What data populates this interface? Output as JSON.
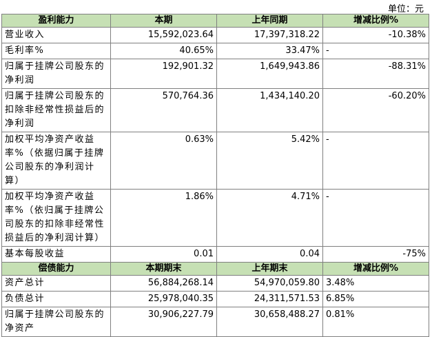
{
  "unit": "单位：元",
  "table": {
    "header": [
      "盈利能力",
      "本期",
      "上年同期",
      "增减比例%"
    ],
    "rows": [
      [
        "营业收入",
        "15,592,023.64",
        "17,397,318.22",
        "-10.38%"
      ],
      [
        "毛利率%",
        "40.65%",
        "33.47%",
        "-"
      ],
      [
        "归属于挂牌公司股东的净利润",
        "192,901.32",
        "1,649,943.86",
        "-88.31%"
      ],
      [
        "归属于挂牌公司股东的扣除非经常性损益后的净利润",
        "570,764.36",
        "1,434,140.20",
        "-60.20%"
      ],
      [
        "加权平均净资产收益率%（依据归属于挂牌公司股东的净利润计算）",
        "0.63%",
        "5.42%",
        "-"
      ],
      [
        "加权平均净资产收益率%（依归属于挂牌公司股东的扣除非经常性损益后的净利润计算）",
        "1.86%",
        "4.71%",
        "-"
      ],
      [
        "基本每股收益",
        "0.01",
        "0.04",
        "-75%"
      ]
    ],
    "header2": [
      "偿债能力",
      "本期期末",
      "上年期末",
      "增减比例%"
    ],
    "rows2": [
      [
        "资产总计",
        "56,884,268.14",
        "54,970,059.80",
        "3.48%"
      ],
      [
        "负债总计",
        "25,978,040.35",
        "24,311,571.53",
        "6.85%"
      ],
      [
        "归属于挂牌公司股东的净资产",
        "30,906,227.79",
        "30,658,488.27",
        "0.81%"
      ]
    ]
  }
}
